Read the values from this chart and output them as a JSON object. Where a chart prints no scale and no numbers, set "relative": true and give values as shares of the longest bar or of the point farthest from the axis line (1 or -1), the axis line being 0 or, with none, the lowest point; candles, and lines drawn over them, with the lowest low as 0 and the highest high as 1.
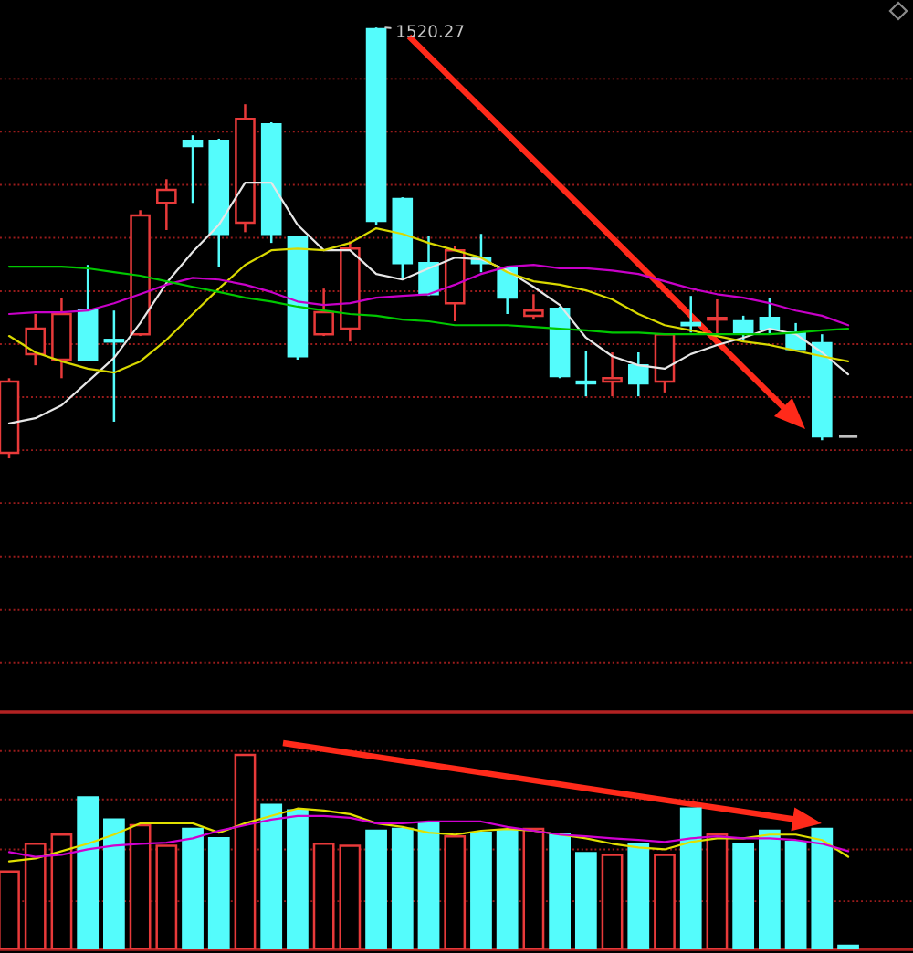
{
  "chart_data": [
    {
      "type": "candlestick",
      "relative": true,
      "categories": [
        null,
        null,
        null,
        null,
        null,
        null,
        null,
        null,
        null,
        null,
        null,
        null,
        null,
        null,
        null,
        null,
        null,
        null,
        null,
        null,
        null,
        null,
        null,
        null,
        null,
        null,
        null,
        null,
        null,
        null,
        null,
        null,
        null
      ],
      "ohlc": [
        [
          0.013,
          0.186,
          0,
          0.178
        ],
        [
          0.242,
          0.335,
          0.216,
          0.301
        ],
        [
          0.229,
          0.373,
          0.186,
          0.335
        ],
        [
          0.343,
          0.449,
          0.225,
          0.229
        ],
        [
          0.275,
          0.343,
          0.085,
          0.271
        ],
        [
          0.288,
          0.576,
          0.284,
          0.564
        ],
        [
          0.593,
          0.648,
          0.53,
          0.623
        ],
        [
          0.737,
          0.75,
          0.593,
          0.725
        ],
        [
          0.737,
          0.742,
          0.445,
          0.521
        ],
        [
          0.547,
          0.822,
          0.525,
          0.788
        ],
        [
          0.775,
          0.78,
          0.5,
          0.521
        ],
        [
          0.513,
          0.517,
          0.229,
          0.237
        ],
        [
          0.288,
          0.394,
          0.284,
          0.339
        ],
        [
          0.301,
          0.504,
          0.271,
          0.487
        ],
        [
          0.996,
          1,
          0.542,
          0.551
        ],
        [
          0.602,
          0.606,
          0.419,
          0.453
        ],
        [
          0.453,
          0.517,
          0.377,
          0.381
        ],
        [
          0.36,
          0.492,
          0.318,
          0.483
        ],
        [
          0.466,
          0.521,
          0.432,
          0.453
        ],
        [
          0.441,
          0.445,
          0.335,
          0.373
        ],
        [
          0.331,
          0.381,
          0.322,
          0.343
        ],
        [
          0.347,
          0.352,
          0.186,
          0.191
        ],
        [
          0.178,
          0.25,
          0.144,
          0.174
        ],
        [
          0.178,
          0.246,
          0.144,
          0.186
        ],
        [
          0.216,
          0.246,
          0.144,
          0.174
        ],
        [
          0.178,
          0.288,
          0.153,
          0.288
        ],
        [
          0.314,
          0.377,
          0.292,
          0.309
        ],
        [
          0.322,
          0.369,
          0.288,
          0.326
        ],
        [
          0.318,
          0.331,
          0.271,
          0.292
        ],
        [
          0.326,
          0.373,
          0.288,
          0.301
        ],
        [
          0.292,
          0.314,
          0.254,
          0.254
        ],
        [
          0.267,
          0.288,
          0.042,
          0.051
        ],
        [
          0.051,
          0.051,
          0.051,
          0.051
        ]
      ],
      "colors": [
        "#e83a3a",
        "#e83a3a",
        "#e83a3a",
        "#54fcfc",
        "#54fcfc",
        "#e83a3a",
        "#e83a3a",
        "#54fcfc",
        "#54fcfc",
        "#e83a3a",
        "#54fcfc",
        "#54fcfc",
        "#e83a3a",
        "#e83a3a",
        "#54fcfc",
        "#54fcfc",
        "#54fcfc",
        "#e83a3a",
        "#54fcfc",
        "#54fcfc",
        "#e83a3a",
        "#54fcfc",
        "#54fcfc",
        "#e83a3a",
        "#54fcfc",
        "#e83a3a",
        "#54fcfc",
        "#e83a3a",
        "#54fcfc",
        "#54fcfc",
        "#54fcfc",
        "#54fcfc",
        "#c0c0c0"
      ],
      "series": [
        {
          "type": "line",
          "color": "#e6e6e6",
          "values": [
            0.081,
            0.093,
            0.123,
            0.178,
            0.233,
            0.314,
            0.407,
            0.479,
            0.542,
            0.64,
            0.64,
            0.542,
            0.483,
            0.483,
            0.428,
            0.415,
            0.441,
            0.466,
            0.462,
            0.436,
            0.398,
            0.356,
            0.28,
            0.237,
            0.216,
            0.208,
            0.242,
            0.263,
            0.28,
            0.301,
            0.288,
            0.246,
            0.195
          ]
        },
        {
          "type": "line",
          "color": "#d8d800",
          "values": [
            0.284,
            0.246,
            0.225,
            0.208,
            0.199,
            0.225,
            0.275,
            0.335,
            0.394,
            0.449,
            0.483,
            0.487,
            0.483,
            0.5,
            0.534,
            0.521,
            0.5,
            0.483,
            0.466,
            0.432,
            0.411,
            0.403,
            0.39,
            0.369,
            0.335,
            0.309,
            0.297,
            0.284,
            0.271,
            0.263,
            0.25,
            0.237,
            0.225
          ]
        },
        {
          "type": "line",
          "color": "#c800c8",
          "values": [
            0.335,
            0.339,
            0.339,
            0.343,
            0.36,
            0.381,
            0.403,
            0.419,
            0.415,
            0.403,
            0.386,
            0.364,
            0.356,
            0.36,
            0.373,
            0.377,
            0.381,
            0.403,
            0.428,
            0.445,
            0.449,
            0.441,
            0.441,
            0.436,
            0.428,
            0.411,
            0.394,
            0.381,
            0.373,
            0.36,
            0.343,
            0.331,
            0.309
          ]
        },
        {
          "type": "line",
          "color": "#00c800",
          "values": [
            0.445,
            0.445,
            0.445,
            0.441,
            0.432,
            0.424,
            0.411,
            0.398,
            0.386,
            0.373,
            0.364,
            0.352,
            0.343,
            0.335,
            0.331,
            0.322,
            0.318,
            0.309,
            0.309,
            0.309,
            0.305,
            0.301,
            0.297,
            0.292,
            0.292,
            0.288,
            0.288,
            0.288,
            0.288,
            0.288,
            0.292,
            0.297,
            0.301
          ]
        }
      ],
      "ref_lines": [
        {
          "axis": "y",
          "value": 0.881,
          "color": "#9a1c1c",
          "line_style": "dotted"
        },
        {
          "axis": "y",
          "value": 0.758,
          "color": "#9a1c1c",
          "line_style": "dotted"
        },
        {
          "axis": "y",
          "value": 0.635,
          "color": "#9a1c1c",
          "line_style": "dotted"
        },
        {
          "axis": "y",
          "value": 0.512,
          "color": "#9a1c1c",
          "line_style": "dotted"
        },
        {
          "axis": "y",
          "value": 0.388,
          "color": "#9a1c1c",
          "line_style": "dotted"
        },
        {
          "axis": "y",
          "value": 0.265,
          "color": "#9a1c1c",
          "line_style": "dotted"
        },
        {
          "axis": "y",
          "value": 0.142,
          "color": "#9a1c1c",
          "line_style": "dotted"
        },
        {
          "axis": "y",
          "value": 0.019,
          "color": "#9a1c1c",
          "line_style": "dotted"
        },
        {
          "axis": "y",
          "value": -0.104,
          "color": "#9a1c1c",
          "line_style": "dotted"
        },
        {
          "axis": "y",
          "value": -0.228,
          "color": "#9a1c1c",
          "line_style": "dotted"
        },
        {
          "axis": "y",
          "value": -0.351,
          "color": "#9a1c1c",
          "line_style": "dotted"
        },
        {
          "axis": "y",
          "value": -0.474,
          "color": "#9a1c1c",
          "line_style": "dotted"
        }
      ],
      "annotations": [
        "1520.27"
      ]
    },
    {
      "type": "bar",
      "relative": true,
      "categories": [
        null,
        null,
        null,
        null,
        null,
        null,
        null,
        null,
        null,
        null,
        null,
        null,
        null,
        null,
        null,
        null,
        null,
        null,
        null,
        null,
        null,
        null,
        null,
        null,
        null,
        null,
        null,
        null,
        null,
        null,
        null,
        null,
        null
      ],
      "series": [
        {
          "type": "bar",
          "colors": [
            "#e83a3a",
            "#e83a3a",
            "#e83a3a",
            "#54fcfc",
            "#54fcfc",
            "#e83a3a",
            "#e83a3a",
            "#54fcfc",
            "#54fcfc",
            "#e83a3a",
            "#54fcfc",
            "#54fcfc",
            "#e83a3a",
            "#e83a3a",
            "#54fcfc",
            "#54fcfc",
            "#54fcfc",
            "#e83a3a",
            "#54fcfc",
            "#54fcfc",
            "#e83a3a",
            "#54fcfc",
            "#54fcfc",
            "#e83a3a",
            "#54fcfc",
            "#e83a3a",
            "#54fcfc",
            "#e83a3a",
            "#54fcfc",
            "#54fcfc",
            "#54fcfc",
            "#54fcfc",
            "#54fcfc"
          ],
          "values": [
            0.4,
            0.543,
            0.59,
            0.781,
            0.667,
            0.638,
            0.533,
            0.619,
            0.571,
            1,
            0.743,
            0.714,
            0.543,
            0.533,
            0.61,
            0.619,
            0.648,
            0.581,
            0.6,
            0.61,
            0.619,
            0.59,
            0.495,
            0.486,
            0.543,
            0.486,
            0.724,
            0.59,
            0.543,
            0.61,
            0.552,
            0.619,
            0.019
          ]
        },
        {
          "type": "line",
          "color": "#e0e000",
          "values": [
            0.452,
            0.467,
            0.505,
            0.543,
            0.59,
            0.648,
            0.648,
            0.648,
            0.6,
            0.648,
            0.686,
            0.724,
            0.714,
            0.695,
            0.648,
            0.629,
            0.6,
            0.59,
            0.61,
            0.619,
            0.61,
            0.59,
            0.571,
            0.543,
            0.524,
            0.514,
            0.552,
            0.571,
            0.571,
            0.59,
            0.59,
            0.562,
            0.476
          ]
        },
        {
          "type": "line",
          "color": "#d000d0",
          "values": [
            0.5,
            0.476,
            0.486,
            0.514,
            0.533,
            0.543,
            0.548,
            0.571,
            0.61,
            0.638,
            0.667,
            0.686,
            0.686,
            0.676,
            0.648,
            0.648,
            0.657,
            0.657,
            0.657,
            0.629,
            0.61,
            0.59,
            0.581,
            0.571,
            0.562,
            0.552,
            0.571,
            0.581,
            0.571,
            0.571,
            0.562,
            0.543,
            0.505
          ]
        }
      ],
      "ref_lines": [
        {
          "axis": "y",
          "value": 1.019,
          "color": "#9a1c1c",
          "line_style": "dotted"
        },
        {
          "axis": "y",
          "value": 0.771,
          "color": "#9a1c1c",
          "line_style": "dotted"
        },
        {
          "axis": "y",
          "value": 0.514,
          "color": "#9a1c1c",
          "line_style": "dotted"
        },
        {
          "axis": "y",
          "value": 0.248,
          "color": "#9a1c1c",
          "line_style": "dotted"
        }
      ]
    }
  ]
}
